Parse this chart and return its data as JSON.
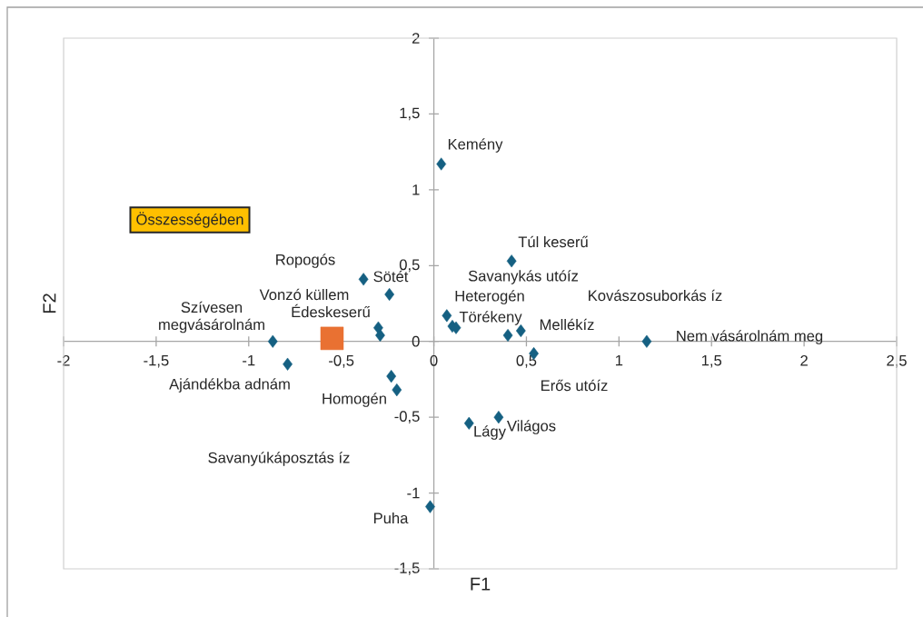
{
  "chart_data": {
    "type": "scatter",
    "xlabel": "F1",
    "ylabel": "F2",
    "xlim": [
      -2,
      2.5
    ],
    "ylim": [
      -1.5,
      2
    ],
    "xticks": [
      -2,
      {
        "value": -1.5,
        "label": "-1,5"
      },
      -1,
      {
        "value": -0.5,
        "label": "-0,5"
      },
      0,
      {
        "value": 0.5,
        "label": "0,5"
      },
      1,
      {
        "value": 1.5,
        "label": "1,5"
      },
      2,
      {
        "value": 2.5,
        "label": "2,5"
      }
    ],
    "yticks": [
      {
        "value": -1.5,
        "label": "-1,5"
      },
      -1,
      {
        "value": -0.5,
        "label": "-0,5"
      },
      0,
      {
        "value": 0.5,
        "label": "0,5"
      },
      1,
      {
        "value": 1.5,
        "label": "1,5"
      },
      2
    ],
    "series": [
      {
        "color": "#156082",
        "marker": "diamond",
        "x": [
          0.04,
          0.42,
          -0.38,
          -0.24,
          0.07,
          0.1,
          0.12,
          -0.3,
          -0.29,
          0.4,
          0.47,
          -0.87,
          1.15,
          0.54,
          -0.79,
          -0.23,
          -0.2,
          0.19,
          0.35,
          -0.02
        ],
        "values": [
          1.17,
          0.53,
          0.41,
          0.31,
          0.17,
          0.1,
          0.09,
          0.09,
          0.04,
          0.04,
          0.07,
          0.0,
          0.0,
          -0.08,
          -0.15,
          -0.23,
          -0.32,
          -0.54,
          -0.5,
          -1.09
        ]
      },
      {
        "color": "#e97132",
        "marker": "square",
        "x": [
          -0.55
        ],
        "values": [
          0.02
        ]
      }
    ],
    "annotations": [
      "Kemény",
      "Túl keserű",
      "Ropogós",
      "Sötét",
      "Savanykás utóíz",
      "Vonzó küllem",
      "Heterogén",
      "Kovászosuborkás íz",
      "Édeskeserű",
      "Szívesen megvásárolnám",
      "Törékeny",
      "Mellékíz",
      "Nem vásárolnám meg",
      "Ajándékba adnám",
      "Erős utóíz",
      "Homogén",
      "Világos",
      "Lágy",
      "Savanyúkáposztás íz",
      "Puha",
      "Összességében"
    ]
  }
}
